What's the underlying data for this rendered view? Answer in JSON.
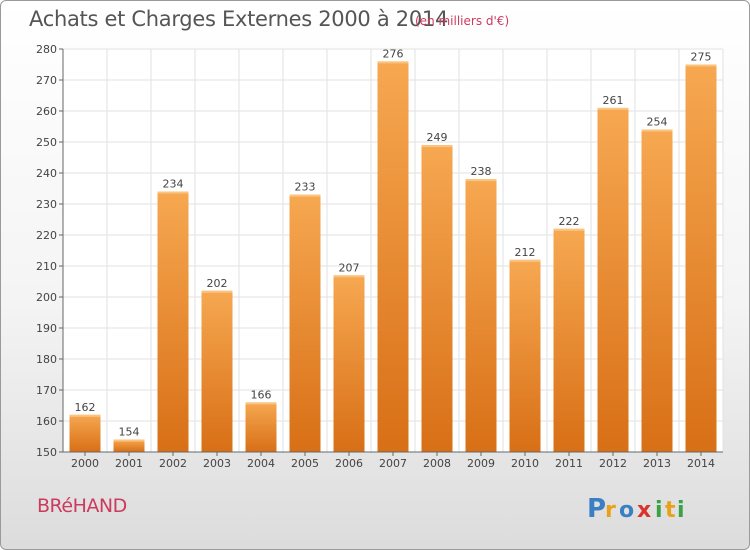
{
  "header": {
    "title": "Achats et Charges Externes 2000 à 2014",
    "subtitle": "(en milliers d'€)"
  },
  "footer": {
    "commune": "BRéHAND",
    "logo_text": "Proxiti"
  },
  "colors": {
    "bar_top": "#f6a851",
    "bar_bottom": "#d86f16",
    "grid": "#e2e2e2",
    "axis_text": "#444444",
    "title_text": "#555555",
    "accent": "#cc3a5d"
  },
  "chart_data": {
    "type": "bar",
    "categories": [
      "2000",
      "2001",
      "2002",
      "2003",
      "2004",
      "2005",
      "2006",
      "2007",
      "2008",
      "2009",
      "2010",
      "2011",
      "2012",
      "2013",
      "2014"
    ],
    "values": [
      162,
      154,
      234,
      202,
      166,
      233,
      207,
      276,
      249,
      238,
      212,
      222,
      261,
      254,
      275
    ],
    "title": "Achats et Charges Externes 2000 à 2014",
    "subtitle": "(en milliers d'€)",
    "xlabel": "",
    "ylabel": "",
    "ylim": [
      150,
      280
    ],
    "yticks": [
      150,
      160,
      170,
      180,
      190,
      200,
      210,
      220,
      230,
      240,
      250,
      260,
      270,
      280
    ],
    "grid": true,
    "data_labels": true
  }
}
